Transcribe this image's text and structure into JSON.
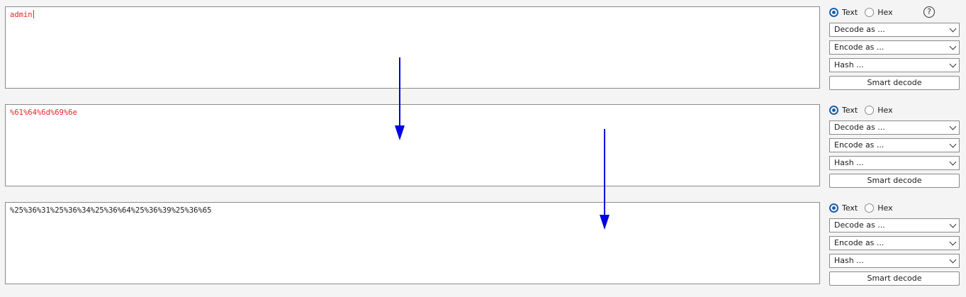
{
  "panels": [
    {
      "content": "admin",
      "text_color": "#e8252a",
      "mode_text": "Text",
      "mode_hex": "Hex",
      "decode_label": "Decode as ...",
      "encode_label": "Encode as ...",
      "hash_label": "Hash ...",
      "smart_decode": "Smart decode",
      "selected_mode": "Text"
    },
    {
      "content": "%61%64%6d%69%6e",
      "text_color": "#e8252a",
      "mode_text": "Text",
      "mode_hex": "Hex",
      "decode_label": "Decode as ...",
      "encode_label": "Encode as ...",
      "hash_label": "Hash ...",
      "smart_decode": "Smart decode",
      "selected_mode": "Text"
    },
    {
      "content": "%25%36%31%25%36%34%25%36%64%25%36%39%25%36%65",
      "text_color": "#1a1a1a",
      "mode_text": "Text",
      "mode_hex": "Hex",
      "decode_label": "Decode as ...",
      "encode_label": "Encode as ...",
      "hash_label": "Hash ...",
      "smart_decode": "Smart decode",
      "selected_mode": "Text"
    }
  ],
  "help": "?",
  "icons": {
    "help": "help-icon",
    "dropdown": "chevron-down-icon",
    "annotation": "arrow-down-icon"
  },
  "colors": {
    "accent": "#1c5fa8",
    "annotation_arrow": "#0000e6"
  }
}
